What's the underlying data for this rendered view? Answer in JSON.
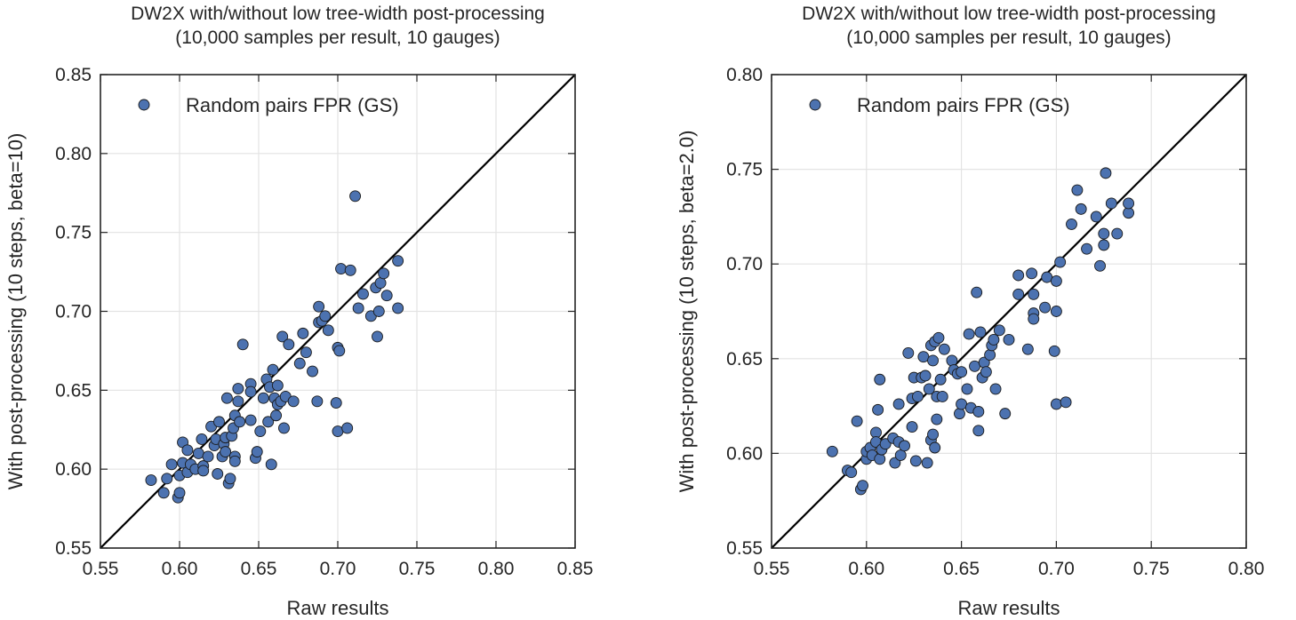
{
  "chart_data": [
    {
      "type": "scatter",
      "title": "DW2X with/without low tree-width post-processing",
      "subtitle": "(10,000 samples per result, 10 gauges)",
      "xlabel": "Raw results",
      "ylabel": "With post-processing (10 steps, beta=10)",
      "xlim": [
        0.55,
        0.85
      ],
      "ylim": [
        0.55,
        0.85
      ],
      "xticks": [
        "0.55",
        "0.60",
        "0.65",
        "0.70",
        "0.75",
        "0.80",
        "0.85"
      ],
      "yticks": [
        "0.55",
        "0.60",
        "0.65",
        "0.70",
        "0.75",
        "0.80",
        "0.85"
      ],
      "grid": true,
      "legend_position": "top-left",
      "diagonal_line": true,
      "colors": {
        "marker": "#4c72b0",
        "marker_edge": "#1a1a1a",
        "line": "#000000",
        "grid": "#e3e3e3"
      },
      "series": [
        {
          "name": "Random pairs FPR (GS)",
          "points": [
            [
              0.582,
              0.593
            ],
            [
              0.59,
              0.585
            ],
            [
              0.592,
              0.594
            ],
            [
              0.595,
              0.603
            ],
            [
              0.599,
              0.582
            ],
            [
              0.6,
              0.585
            ],
            [
              0.6,
              0.596
            ],
            [
              0.602,
              0.617
            ],
            [
              0.602,
              0.604
            ],
            [
              0.605,
              0.612
            ],
            [
              0.605,
              0.598
            ],
            [
              0.607,
              0.603
            ],
            [
              0.61,
              0.6
            ],
            [
              0.612,
              0.61
            ],
            [
              0.614,
              0.619
            ],
            [
              0.615,
              0.602
            ],
            [
              0.615,
              0.599
            ],
            [
              0.618,
              0.608
            ],
            [
              0.62,
              0.627
            ],
            [
              0.622,
              0.615
            ],
            [
              0.623,
              0.619
            ],
            [
              0.624,
              0.597
            ],
            [
              0.625,
              0.63
            ],
            [
              0.627,
              0.608
            ],
            [
              0.628,
              0.616
            ],
            [
              0.629,
              0.62
            ],
            [
              0.629,
              0.611
            ],
            [
              0.63,
              0.645
            ],
            [
              0.631,
              0.591
            ],
            [
              0.632,
              0.594
            ],
            [
              0.633,
              0.621
            ],
            [
              0.634,
              0.626
            ],
            [
              0.635,
              0.608
            ],
            [
              0.635,
              0.605
            ],
            [
              0.635,
              0.634
            ],
            [
              0.637,
              0.651
            ],
            [
              0.637,
              0.643
            ],
            [
              0.638,
              0.63
            ],
            [
              0.64,
              0.679
            ],
            [
              0.645,
              0.654
            ],
            [
              0.645,
              0.649
            ],
            [
              0.645,
              0.631
            ],
            [
              0.648,
              0.607
            ],
            [
              0.649,
              0.611
            ],
            [
              0.651,
              0.624
            ],
            [
              0.653,
              0.645
            ],
            [
              0.655,
              0.657
            ],
            [
              0.656,
              0.63
            ],
            [
              0.657,
              0.652
            ],
            [
              0.658,
              0.603
            ],
            [
              0.659,
              0.663
            ],
            [
              0.66,
              0.645
            ],
            [
              0.661,
              0.634
            ],
            [
              0.662,
              0.653
            ],
            [
              0.662,
              0.641
            ],
            [
              0.664,
              0.643
            ],
            [
              0.665,
              0.684
            ],
            [
              0.666,
              0.626
            ],
            [
              0.667,
              0.646
            ],
            [
              0.669,
              0.679
            ],
            [
              0.672,
              0.643
            ],
            [
              0.676,
              0.667
            ],
            [
              0.678,
              0.686
            ],
            [
              0.68,
              0.674
            ],
            [
              0.684,
              0.662
            ],
            [
              0.687,
              0.643
            ],
            [
              0.688,
              0.703
            ],
            [
              0.688,
              0.693
            ],
            [
              0.69,
              0.694
            ],
            [
              0.692,
              0.697
            ],
            [
              0.694,
              0.688
            ],
            [
              0.699,
              0.642
            ],
            [
              0.7,
              0.624
            ],
            [
              0.7,
              0.677
            ],
            [
              0.701,
              0.675
            ],
            [
              0.702,
              0.727
            ],
            [
              0.706,
              0.626
            ],
            [
              0.708,
              0.726
            ],
            [
              0.711,
              0.773
            ],
            [
              0.713,
              0.702
            ],
            [
              0.716,
              0.711
            ],
            [
              0.721,
              0.697
            ],
            [
              0.724,
              0.715
            ],
            [
              0.725,
              0.684
            ],
            [
              0.726,
              0.7
            ],
            [
              0.727,
              0.718
            ],
            [
              0.729,
              0.724
            ],
            [
              0.731,
              0.71
            ],
            [
              0.738,
              0.702
            ],
            [
              0.738,
              0.732
            ]
          ]
        }
      ]
    },
    {
      "type": "scatter",
      "title": "DW2X with/without low tree-width post-processing",
      "subtitle": "(10,000 samples per result, 10 gauges)",
      "xlabel": "Raw results",
      "ylabel": "With post-processing (10 steps, beta=2.0)",
      "xlim": [
        0.55,
        0.8
      ],
      "ylim": [
        0.55,
        0.8
      ],
      "xticks": [
        "0.55",
        "0.60",
        "0.65",
        "0.70",
        "0.75",
        "0.80"
      ],
      "yticks": [
        "0.55",
        "0.60",
        "0.65",
        "0.70",
        "0.75",
        "0.80"
      ],
      "grid": true,
      "legend_position": "top-left",
      "diagonal_line": true,
      "colors": {
        "marker": "#4c72b0",
        "marker_edge": "#1a1a1a",
        "line": "#000000",
        "grid": "#e3e3e3"
      },
      "series": [
        {
          "name": "Random pairs FPR (GS)",
          "points": [
            [
              0.582,
              0.601
            ],
            [
              0.59,
              0.591
            ],
            [
              0.592,
              0.59
            ],
            [
              0.595,
              0.617
            ],
            [
              0.597,
              0.581
            ],
            [
              0.598,
              0.583
            ],
            [
              0.6,
              0.597
            ],
            [
              0.6,
              0.601
            ],
            [
              0.602,
              0.603
            ],
            [
              0.603,
              0.599
            ],
            [
              0.605,
              0.611
            ],
            [
              0.605,
              0.606
            ],
            [
              0.606,
              0.623
            ],
            [
              0.607,
              0.597
            ],
            [
              0.607,
              0.639
            ],
            [
              0.608,
              0.602
            ],
            [
              0.61,
              0.605
            ],
            [
              0.614,
              0.608
            ],
            [
              0.615,
              0.595
            ],
            [
              0.617,
              0.626
            ],
            [
              0.617,
              0.606
            ],
            [
              0.618,
              0.599
            ],
            [
              0.62,
              0.604
            ],
            [
              0.622,
              0.653
            ],
            [
              0.624,
              0.629
            ],
            [
              0.624,
              0.614
            ],
            [
              0.625,
              0.64
            ],
            [
              0.626,
              0.596
            ],
            [
              0.627,
              0.63
            ],
            [
              0.629,
              0.64
            ],
            [
              0.63,
              0.651
            ],
            [
              0.631,
              0.641
            ],
            [
              0.632,
              0.595
            ],
            [
              0.633,
              0.634
            ],
            [
              0.634,
              0.607
            ],
            [
              0.634,
              0.657
            ],
            [
              0.635,
              0.649
            ],
            [
              0.635,
              0.61
            ],
            [
              0.636,
              0.659
            ],
            [
              0.636,
              0.603
            ],
            [
              0.637,
              0.618
            ],
            [
              0.637,
              0.63
            ],
            [
              0.638,
              0.661
            ],
            [
              0.639,
              0.639
            ],
            [
              0.64,
              0.63
            ],
            [
              0.641,
              0.655
            ],
            [
              0.645,
              0.649
            ],
            [
              0.646,
              0.644
            ],
            [
              0.648,
              0.642
            ],
            [
              0.649,
              0.621
            ],
            [
              0.65,
              0.626
            ],
            [
              0.65,
              0.643
            ],
            [
              0.653,
              0.634
            ],
            [
              0.654,
              0.663
            ],
            [
              0.655,
              0.624
            ],
            [
              0.657,
              0.646
            ],
            [
              0.658,
              0.685
            ],
            [
              0.659,
              0.622
            ],
            [
              0.659,
              0.612
            ],
            [
              0.66,
              0.664
            ],
            [
              0.661,
              0.64
            ],
            [
              0.662,
              0.648
            ],
            [
              0.663,
              0.643
            ],
            [
              0.665,
              0.652
            ],
            [
              0.666,
              0.657
            ],
            [
              0.667,
              0.66
            ],
            [
              0.668,
              0.634
            ],
            [
              0.67,
              0.665
            ],
            [
              0.673,
              0.621
            ],
            [
              0.675,
              0.66
            ],
            [
              0.68,
              0.694
            ],
            [
              0.68,
              0.684
            ],
            [
              0.685,
              0.655
            ],
            [
              0.687,
              0.695
            ],
            [
              0.688,
              0.674
            ],
            [
              0.688,
              0.684
            ],
            [
              0.688,
              0.671
            ],
            [
              0.694,
              0.677
            ],
            [
              0.695,
              0.693
            ],
            [
              0.699,
              0.654
            ],
            [
              0.7,
              0.626
            ],
            [
              0.7,
              0.675
            ],
            [
              0.7,
              0.691
            ],
            [
              0.702,
              0.701
            ],
            [
              0.705,
              0.627
            ],
            [
              0.708,
              0.721
            ],
            [
              0.711,
              0.739
            ],
            [
              0.713,
              0.729
            ],
            [
              0.716,
              0.708
            ],
            [
              0.721,
              0.725
            ],
            [
              0.723,
              0.699
            ],
            [
              0.725,
              0.71
            ],
            [
              0.725,
              0.716
            ],
            [
              0.726,
              0.748
            ],
            [
              0.729,
              0.732
            ],
            [
              0.732,
              0.716
            ],
            [
              0.738,
              0.727
            ],
            [
              0.738,
              0.732
            ]
          ]
        }
      ]
    }
  ]
}
